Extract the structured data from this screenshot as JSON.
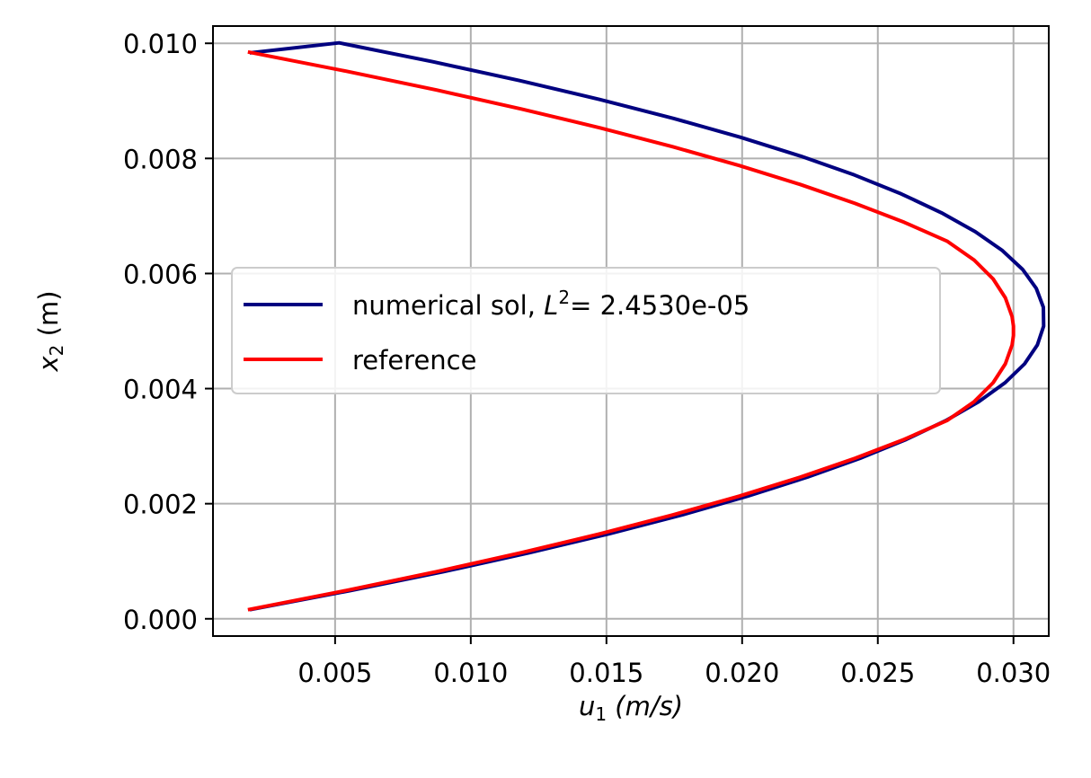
{
  "chart_data": {
    "type": "line",
    "xlabel": {
      "var": "u",
      "sub": "1",
      "unit": "(m/s)"
    },
    "ylabel": {
      "var": "x",
      "sub": "2",
      "unit": "(m)"
    },
    "xlim": [
      0.0005,
      0.0313
    ],
    "ylim": [
      -0.0003,
      0.0103
    ],
    "xticks": [
      0.005,
      0.01,
      0.015,
      0.02,
      0.025,
      0.03
    ],
    "xtick_labels": [
      "0.005",
      "0.010",
      "0.015",
      "0.020",
      "0.025",
      "0.030"
    ],
    "yticks": [
      0.0,
      0.002,
      0.004,
      0.006,
      0.008,
      0.01
    ],
    "ytick_labels": [
      "0.000",
      "0.002",
      "0.004",
      "0.006",
      "0.008",
      "0.010"
    ],
    "grid": true,
    "legend_position": "center-left",
    "series": [
      {
        "name": "numerical sol, L2= 2.4530e-05",
        "legend": {
          "prefix": "numerical sol, ",
          "sym": "L",
          "sup": "2",
          "suffix": "= 2.4530e-05"
        },
        "color": "#000080",
        "points": [
          [
            0.00192,
            0.000164
          ],
          [
            0.00558,
            0.000492
          ],
          [
            0.009,
            0.00082
          ],
          [
            0.01217,
            0.001148
          ],
          [
            0.0151,
            0.001477
          ],
          [
            0.01778,
            0.001805
          ],
          [
            0.02021,
            0.002133
          ],
          [
            0.0224,
            0.002461
          ],
          [
            0.02435,
            0.002789
          ],
          [
            0.02605,
            0.003117
          ],
          [
            0.02751,
            0.003445
          ],
          [
            0.02872,
            0.003773
          ],
          [
            0.02969,
            0.004102
          ],
          [
            0.03041,
            0.00443
          ],
          [
            0.03088,
            0.004758
          ],
          [
            0.03111,
            0.005086
          ],
          [
            0.0311,
            0.005414
          ],
          [
            0.03084,
            0.005742
          ],
          [
            0.03034,
            0.00607
          ],
          [
            0.02959,
            0.006398
          ],
          [
            0.02859,
            0.006727
          ],
          [
            0.02735,
            0.007055
          ],
          [
            0.02587,
            0.007383
          ],
          [
            0.02414,
            0.007711
          ],
          [
            0.02216,
            0.008039
          ],
          [
            0.01994,
            0.008367
          ],
          [
            0.01747,
            0.008695
          ],
          [
            0.01476,
            0.009023
          ],
          [
            0.0118,
            0.009352
          ],
          [
            0.0086,
            0.00968
          ],
          [
            0.00515,
            0.010008
          ],
          [
            0.00192,
            0.009836
          ]
        ]
      },
      {
        "name": "reference",
        "color": "#ff0000",
        "points": [
          [
            0.00185,
            0.000164
          ],
          [
            0.0054,
            0.000492
          ],
          [
            0.00874,
            0.00082
          ],
          [
            0.01186,
            0.001148
          ],
          [
            0.01476,
            0.001477
          ],
          [
            0.01744,
            0.001805
          ],
          [
            0.0199,
            0.002133
          ],
          [
            0.02214,
            0.002461
          ],
          [
            0.02416,
            0.002789
          ],
          [
            0.02597,
            0.003117
          ],
          [
            0.02755,
            0.003445
          ],
          [
            0.02855,
            0.003773
          ],
          [
            0.02925,
            0.004102
          ],
          [
            0.0297,
            0.00443
          ],
          [
            0.02995,
            0.004758
          ],
          [
            0.03,
            0.004922
          ],
          [
            0.03,
            0.005086
          ],
          [
            0.02995,
            0.00525
          ],
          [
            0.0297,
            0.005578
          ],
          [
            0.02925,
            0.005906
          ],
          [
            0.02855,
            0.006234
          ],
          [
            0.02755,
            0.006563
          ],
          [
            0.02597,
            0.006891
          ],
          [
            0.02416,
            0.007219
          ],
          [
            0.02214,
            0.007547
          ],
          [
            0.0199,
            0.007875
          ],
          [
            0.01744,
            0.008203
          ],
          [
            0.01476,
            0.008531
          ],
          [
            0.01186,
            0.008859
          ],
          [
            0.00874,
            0.009188
          ],
          [
            0.0054,
            0.009516
          ],
          [
            0.00185,
            0.009844
          ]
        ]
      }
    ]
  }
}
